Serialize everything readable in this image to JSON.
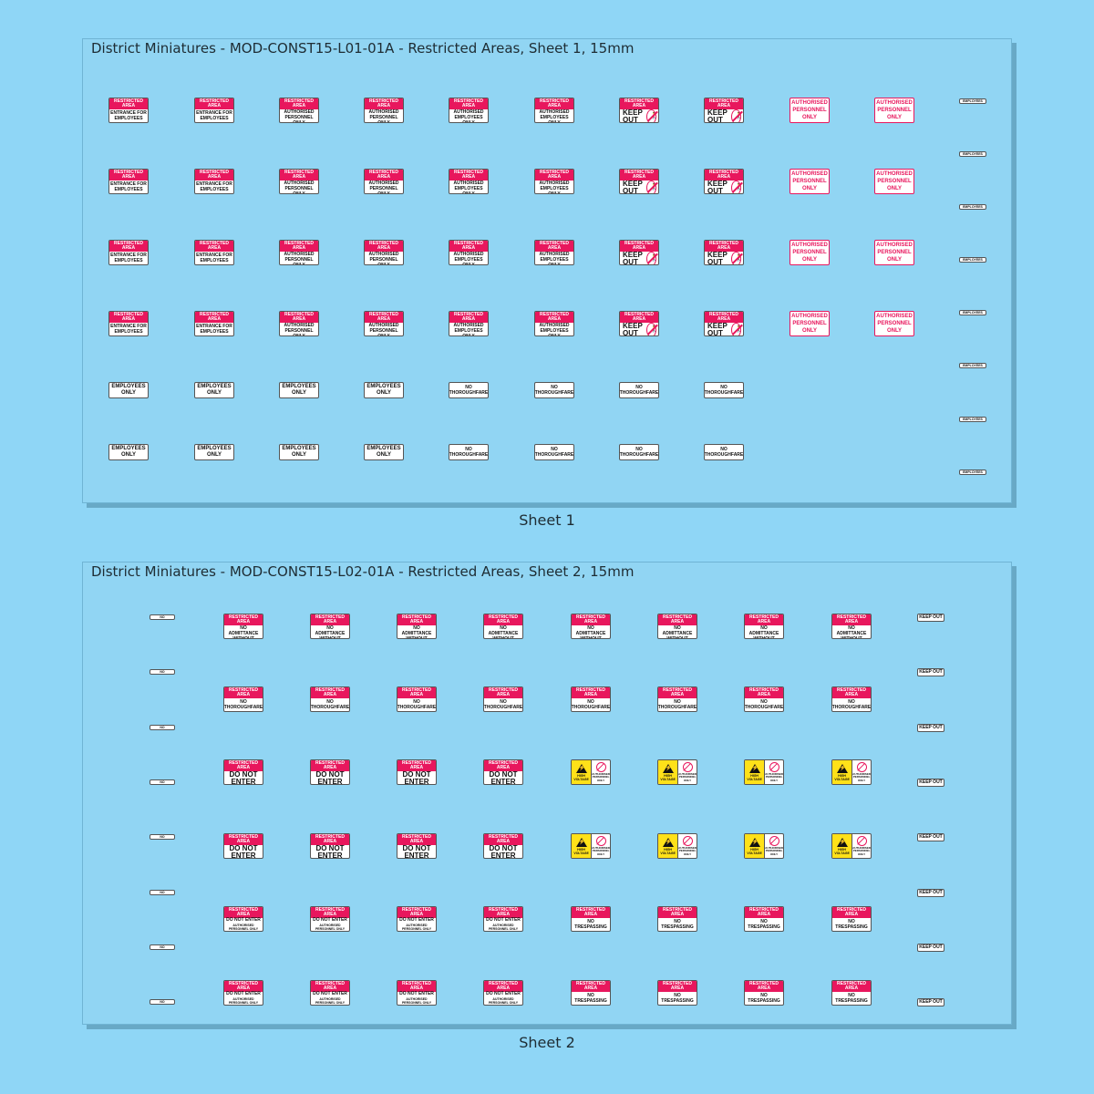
{
  "sheet1": {
    "title": "District Miniatures - MOD-CONST15-L01-01A - Restricted Areas, Sheet 1, 15mm",
    "caption": "Sheet 1"
  },
  "sheet2": {
    "title": "District Miniatures - MOD-CONST15-L02-01A - Restricted Areas, Sheet 2, 15mm",
    "caption": "Sheet 2"
  },
  "signs": {
    "restricted_area": "RESTRICTED AREA",
    "entrance_for_employees": "ENTRANCE FOR EMPLOYEES",
    "authorised_personnel_only": "AUTHORISED PERSONNEL ONLY",
    "authorised_employees_only": "AUTHORISED EMPLOYEES ONLY",
    "keep_out": "KEEP OUT",
    "employees_only": "EMPLOYEES ONLY",
    "no_thoroughfare": "NO THOROUGHFARE",
    "no_admittance": "NO ADMITTANCE",
    "no_admittance_without_authorisation": "NO ADMITTANCE WITHOUT AUTHORISATION",
    "do_not_enter": "DO NOT ENTER",
    "high_voltage": "HIGH VOLTAGE",
    "no_trespassing": "NO TRESPASSING"
  },
  "colors": {
    "background": "#8fd6f6",
    "sheet": "#91d5f3",
    "restricted_red": "#e8175d",
    "warning_yellow": "#ffe119"
  },
  "icons": [
    "no-entry-person-icon",
    "high-voltage-warning-icon"
  ]
}
